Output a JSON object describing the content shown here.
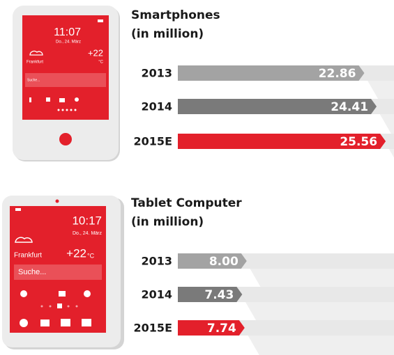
{
  "chart_data": [
    {
      "type": "bar",
      "title": "Smartphones",
      "subtitle": "(in million)",
      "categories": [
        "2013",
        "2014",
        "2015E"
      ],
      "values": [
        22.86,
        24.41,
        25.56
      ],
      "colors": [
        "#a3a3a3",
        "#7a7a7a",
        "#e3202b"
      ]
    },
    {
      "type": "bar",
      "title": "Tablet Computer",
      "subtitle": "(in million)",
      "categories": [
        "2013",
        "2014",
        "2015E"
      ],
      "values": [
        8.0,
        7.43,
        7.74
      ],
      "value_labels": [
        "8.00",
        "7.43",
        "7.74"
      ],
      "colors": [
        "#a3a3a3",
        "#7a7a7a",
        "#e3202b"
      ]
    }
  ],
  "phones": [
    {
      "time": "11:07",
      "date": "Do., 24. März",
      "temp": "+22",
      "unit": "°C",
      "city": "Frankfurt",
      "search": "Suche..."
    },
    {
      "time": "10:17",
      "date": "Do., 24. März",
      "temp": "+22",
      "unit": "°C",
      "city": "Frankfurt",
      "search": "Suche..."
    }
  ]
}
